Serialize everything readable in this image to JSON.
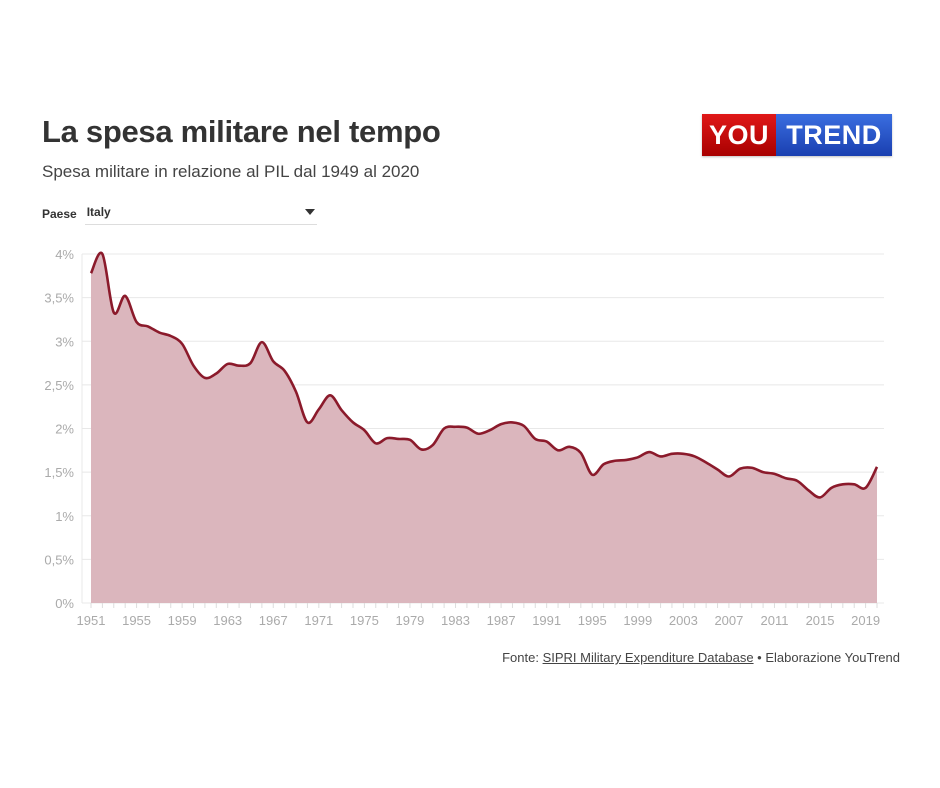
{
  "header": {
    "title": "La spesa militare nel tempo",
    "subtitle": "Spesa militare in relazione al PIL dal 1949 al 2020"
  },
  "logo": {
    "part1": "YOU",
    "part2": "TREND",
    "color_red": "#c40f0f",
    "color_blue": "#2350c8"
  },
  "selector": {
    "label": "Paese",
    "value": "Italy"
  },
  "footer": {
    "prefix": "Fonte: ",
    "link_text": "SIPRI Military Expenditure Database",
    "suffix": " • Elaborazione YouTrend"
  },
  "colors": {
    "line": "#8b1a2b",
    "fill": "#dbb6bd",
    "grid": "#e8e8e8",
    "axis_text": "#aaaaaa"
  },
  "chart_data": {
    "type": "area",
    "title": "La spesa militare nel tempo",
    "subtitle": "Spesa militare in relazione al PIL dal 1949 al 2020",
    "xlabel": "",
    "ylabel": "",
    "ylim": [
      0,
      4
    ],
    "xlim": [
      1951,
      2020
    ],
    "grid": true,
    "y_ticks": [
      "0%",
      "0,5%",
      "1%",
      "1,5%",
      "2%",
      "2,5%",
      "3%",
      "3,5%",
      "4%"
    ],
    "y_tick_values": [
      0,
      0.5,
      1,
      1.5,
      2,
      2.5,
      3,
      3.5,
      4
    ],
    "x_ticks": [
      1951,
      1955,
      1959,
      1963,
      1967,
      1971,
      1975,
      1979,
      1983,
      1987,
      1991,
      1995,
      1999,
      2003,
      2007,
      2011,
      2015,
      2019
    ],
    "series": [
      {
        "name": "Italy",
        "x": [
          1951,
          1952,
          1953,
          1954,
          1955,
          1956,
          1957,
          1958,
          1959,
          1960,
          1961,
          1962,
          1963,
          1964,
          1965,
          1966,
          1967,
          1968,
          1969,
          1970,
          1971,
          1972,
          1973,
          1974,
          1975,
          1976,
          1977,
          1978,
          1979,
          1980,
          1981,
          1982,
          1983,
          1984,
          1985,
          1986,
          1987,
          1988,
          1989,
          1990,
          1991,
          1992,
          1993,
          1994,
          1995,
          1996,
          1997,
          1998,
          1999,
          2000,
          2001,
          2002,
          2003,
          2004,
          2005,
          2006,
          2007,
          2008,
          2009,
          2010,
          2011,
          2012,
          2013,
          2014,
          2015,
          2016,
          2017,
          2018,
          2019,
          2020
        ],
        "values": [
          3.78,
          4.0,
          3.33,
          3.52,
          3.22,
          3.17,
          3.1,
          3.06,
          2.97,
          2.72,
          2.58,
          2.63,
          2.74,
          2.72,
          2.75,
          2.99,
          2.77,
          2.66,
          2.42,
          2.07,
          2.22,
          2.38,
          2.21,
          2.07,
          1.98,
          1.83,
          1.89,
          1.88,
          1.87,
          1.76,
          1.81,
          2.0,
          2.02,
          2.01,
          1.94,
          1.98,
          2.05,
          2.07,
          2.03,
          1.88,
          1.85,
          1.75,
          1.79,
          1.72,
          1.47,
          1.59,
          1.63,
          1.64,
          1.67,
          1.73,
          1.68,
          1.71,
          1.71,
          1.68,
          1.61,
          1.53,
          1.45,
          1.54,
          1.55,
          1.5,
          1.48,
          1.43,
          1.4,
          1.29,
          1.21,
          1.32,
          1.36,
          1.36,
          1.32,
          1.56
        ]
      }
    ]
  }
}
